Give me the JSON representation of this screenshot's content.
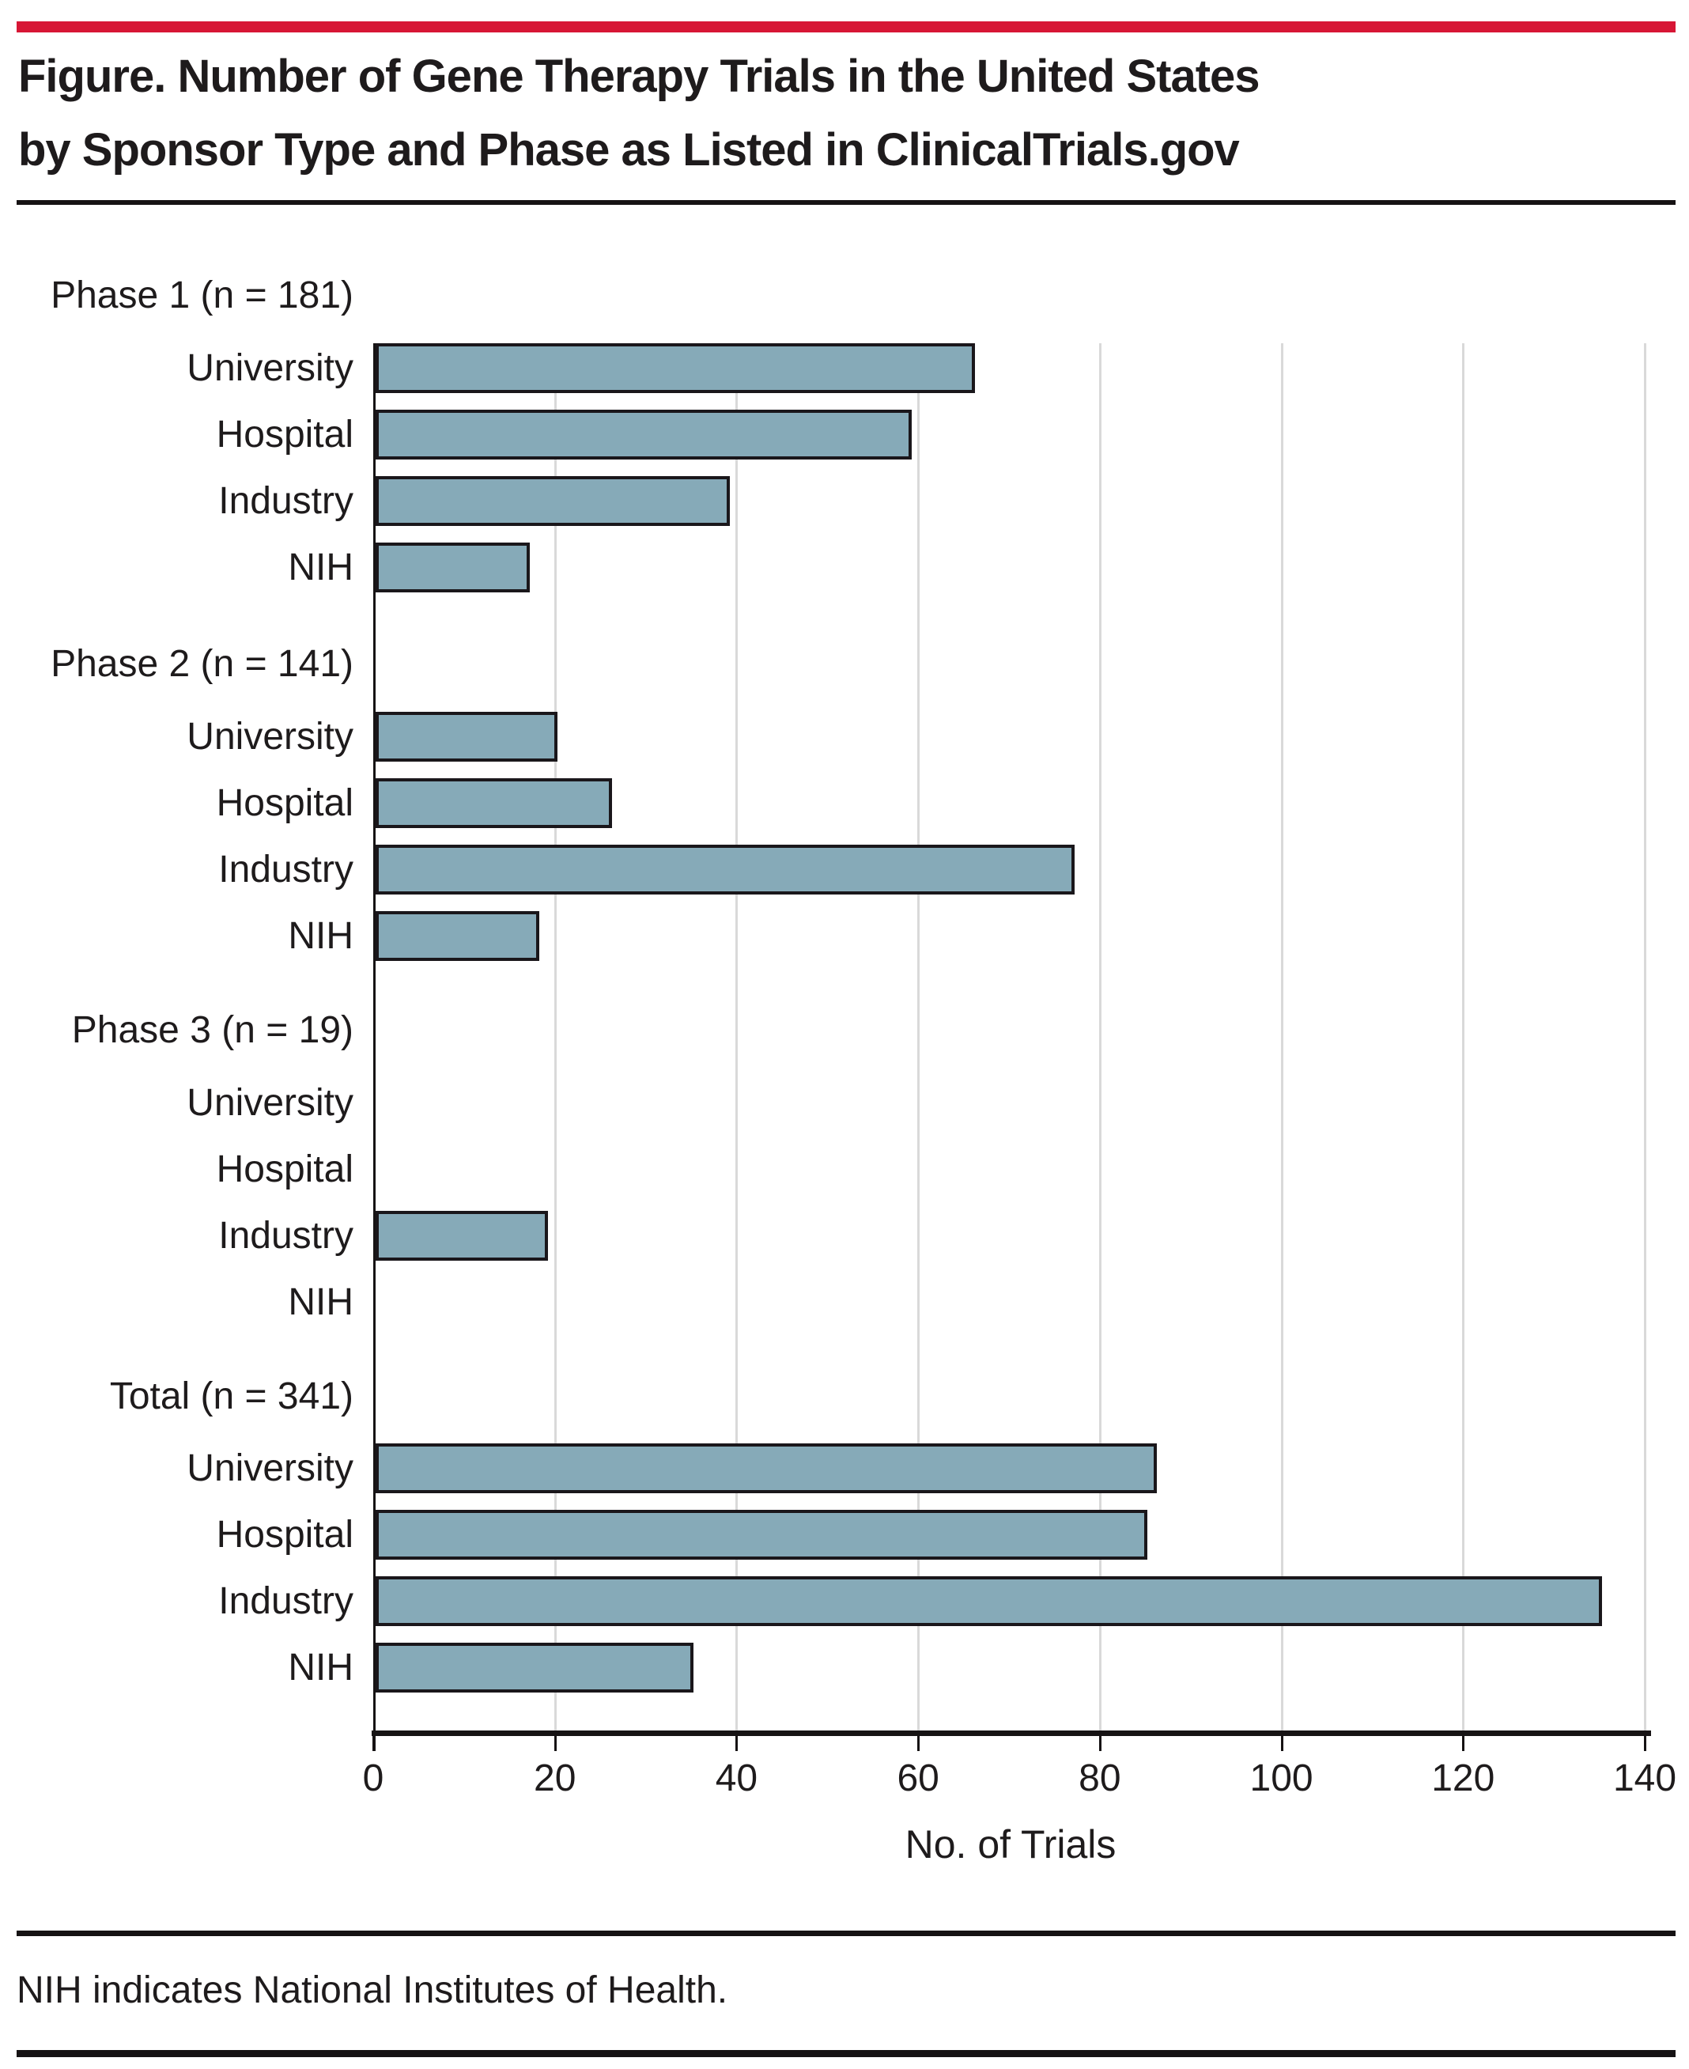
{
  "page": {
    "background": "#FFFFFF",
    "accent_red": "#D71635",
    "text_color": "#1E1B1C"
  },
  "figure": {
    "title_line1": "Figure. Number of Gene Therapy Trials in the United States",
    "title_line2": "by Sponsor Type and Phase as Listed in ClinicalTrials.gov",
    "footnote": "NIH indicates National Institutes of Health."
  },
  "chart_data": {
    "type": "bar",
    "orientation": "horizontal",
    "title": "Number of Gene Therapy Trials in the United States by Sponsor Type and Phase as Listed in ClinicalTrials.gov",
    "xlabel": "No. of Trials",
    "xlim": [
      0,
      140
    ],
    "xticks": [
      0,
      20,
      40,
      60,
      80,
      100,
      120,
      140
    ],
    "grid": "vertical gridlines at each x tick",
    "legend": "none",
    "bar_fill": "#86AAB8",
    "bar_border": "#1A171B",
    "gridline_color": "#D9D9D9",
    "categories": [
      "University",
      "Hospital",
      "Industry",
      "NIH"
    ],
    "groups": [
      {
        "label": "Phase 1 (n = 181)",
        "n": 181,
        "values": [
          66,
          59,
          39,
          17
        ]
      },
      {
        "label": "Phase 2 (n = 141)",
        "n": 141,
        "values": [
          20,
          26,
          77,
          18
        ]
      },
      {
        "label": "Phase 3 (n = 19)",
        "n": 19,
        "values": [
          0,
          0,
          19,
          0
        ]
      },
      {
        "label": "Total (n = 341)",
        "n": 341,
        "values": [
          86,
          85,
          135,
          35
        ]
      }
    ]
  }
}
